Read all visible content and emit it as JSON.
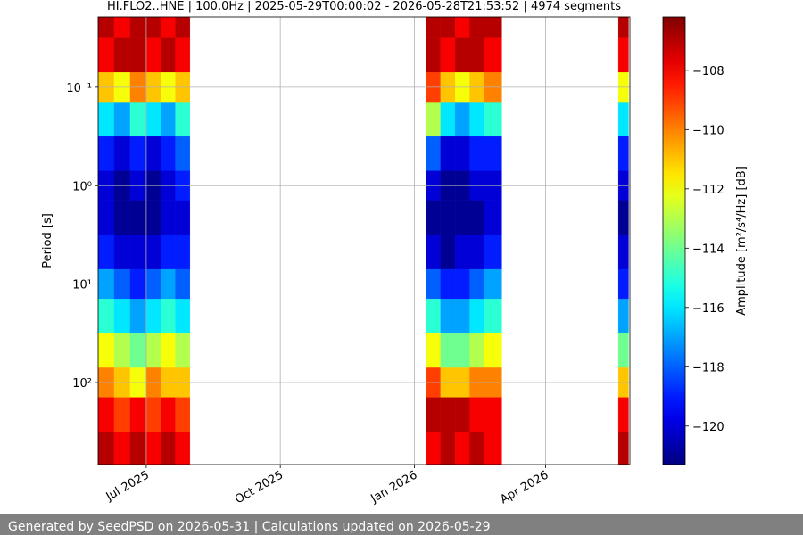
{
  "chart_data": {
    "type": "spectrogram",
    "title": "HI.FLO2..HNE | 100.0Hz | 2025-05-29T00:00:02 - 2026-05-28T21:53:52 | 4974 segments",
    "y_label": "Period [s]",
    "colorbar_label": "Amplitude [m²/s⁴/Hz] [dB]",
    "xlim": [
      "2025-05-29T00:00:02",
      "2026-05-28T21:53:52"
    ],
    "xticks": [
      {
        "value": "2025-07-01",
        "label": "Jul 2025"
      },
      {
        "value": "2025-10-01",
        "label": "Oct 2025"
      },
      {
        "value": "2026-01-01",
        "label": "Jan 2026"
      },
      {
        "value": "2026-04-01",
        "label": "Apr 2026"
      }
    ],
    "ylim": [
      0.0193,
      681
    ],
    "y_log": true,
    "y_inverted": true,
    "yticks": [
      {
        "value": 0.1,
        "label": "10⁻¹"
      },
      {
        "value": 1,
        "label": "10⁰"
      },
      {
        "value": 10,
        "label": "10¹"
      },
      {
        "value": 100,
        "label": "10²"
      }
    ],
    "grid": true,
    "colormap": "jet",
    "clim": [
      -121.3,
      -106.2
    ],
    "cticks": [
      {
        "value": -108,
        "label": "−108"
      },
      {
        "value": -110,
        "label": "−110"
      },
      {
        "value": -112,
        "label": "−112"
      },
      {
        "value": -114,
        "label": "−114"
      },
      {
        "value": -116,
        "label": "−116"
      },
      {
        "value": -118,
        "label": "−118"
      },
      {
        "value": -120,
        "label": "−120"
      }
    ],
    "periods": [
      0.02,
      0.05,
      0.1,
      0.2,
      0.5,
      1,
      2,
      5,
      10,
      20,
      50,
      100,
      200,
      500
    ],
    "columns": [
      {
        "start": "2025-05-29",
        "end": "2025-06-09",
        "values": [
          -107,
          -108,
          -111,
          -116,
          -119,
          -120,
          -120,
          -119,
          -117,
          -115,
          -112,
          -110,
          -108,
          -107
        ]
      },
      {
        "start": "2025-06-09",
        "end": "2025-06-20",
        "values": [
          -108,
          -107,
          -112,
          -117,
          -120,
          -121,
          -121,
          -120,
          -118,
          -116,
          -113,
          -111,
          -109,
          -108
        ]
      },
      {
        "start": "2025-06-20",
        "end": "2025-07-01",
        "values": [
          -107,
          -107,
          -110,
          -115,
          -119,
          -120,
          -121,
          -120,
          -119,
          -117,
          -114,
          -112,
          -108,
          -107
        ]
      },
      {
        "start": "2025-07-01",
        "end": "2025-07-11",
        "values": [
          -107,
          -108,
          -111,
          -116,
          -120,
          -121,
          -121,
          -120,
          -118,
          -116,
          -113,
          -110,
          -109,
          -108
        ]
      },
      {
        "start": "2025-07-11",
        "end": "2025-07-21",
        "values": [
          -108,
          -107,
          -112,
          -117,
          -119,
          -120,
          -120,
          -119,
          -117,
          -115,
          -112,
          -111,
          -108,
          -107
        ]
      },
      {
        "start": "2025-07-21",
        "end": "2025-07-31",
        "values": [
          -107,
          -108,
          -111,
          -115,
          -118,
          -119,
          -120,
          -119,
          -118,
          -116,
          -113,
          -111,
          -109,
          -108
        ]
      },
      {
        "start": "2026-01-09",
        "end": "2026-01-19",
        "values": [
          -107,
          -107,
          -109,
          -113,
          -118,
          -120,
          -121,
          -120,
          -118,
          -115,
          -112,
          -109,
          -107,
          -108
        ]
      },
      {
        "start": "2026-01-19",
        "end": "2026-01-29",
        "values": [
          -107,
          -108,
          -111,
          -116,
          -120,
          -121,
          -121,
          -121,
          -119,
          -117,
          -114,
          -111,
          -107,
          -107
        ]
      },
      {
        "start": "2026-01-29",
        "end": "2026-02-08",
        "values": [
          -108,
          -107,
          -112,
          -117,
          -120,
          -121,
          -121,
          -120,
          -119,
          -117,
          -114,
          -111,
          -107,
          -108
        ]
      },
      {
        "start": "2026-02-08",
        "end": "2026-02-18",
        "values": [
          -107,
          -107,
          -111,
          -116,
          -119,
          -120,
          -121,
          -120,
          -118,
          -116,
          -113,
          -110,
          -108,
          -107
        ]
      },
      {
        "start": "2026-02-18",
        "end": "2026-03-02",
        "values": [
          -107,
          -108,
          -110,
          -115,
          -119,
          -120,
          -120,
          -119,
          -117,
          -115,
          -112,
          -110,
          -108,
          -108
        ]
      },
      {
        "start": "2026-05-21",
        "end": "2026-05-28",
        "values": [
          -107,
          -108,
          -112,
          -116,
          -119,
          -120,
          -121,
          -120,
          -119,
          -117,
          -114,
          -111,
          -108,
          -107
        ]
      }
    ]
  },
  "footer": "Generated by SeedPSD on 2026-05-31 | Calculations updated on 2026-05-29"
}
